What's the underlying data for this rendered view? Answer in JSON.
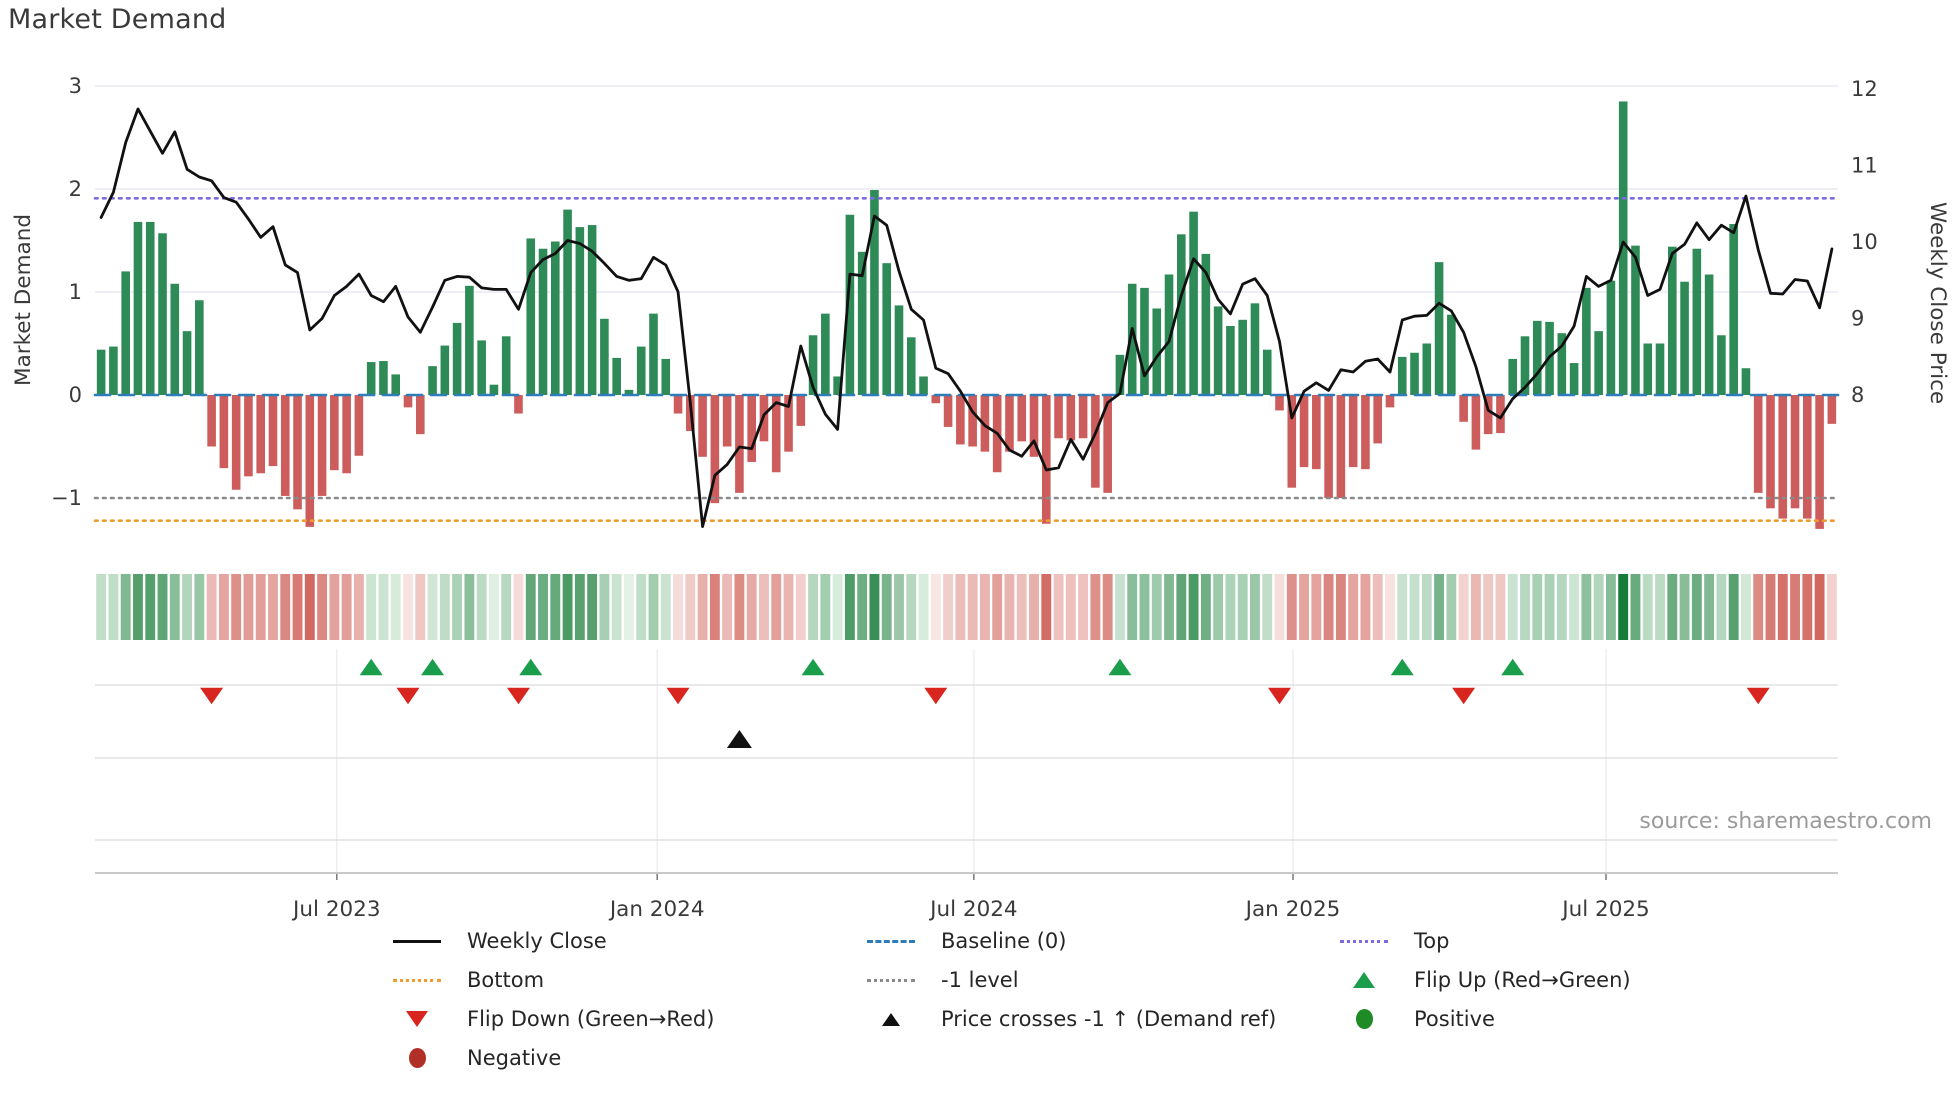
{
  "title": "Market Demand",
  "source": "source: sharemaestro.com",
  "axes": {
    "left": {
      "label": "Market Demand",
      "ticks": [
        {
          "label": "3",
          "value": 3
        },
        {
          "label": "2",
          "value": 2
        },
        {
          "label": "1",
          "value": 1
        },
        {
          "label": "0",
          "value": 0
        },
        {
          "label": "−1",
          "value": -1
        }
      ]
    },
    "right": {
      "label": "Weekly Close Price",
      "ticks": [
        {
          "label": "12",
          "value": 12
        },
        {
          "label": "11",
          "value": 11
        },
        {
          "label": "10",
          "value": 10
        },
        {
          "label": "9",
          "value": 9
        },
        {
          "label": "8",
          "value": 8
        }
      ]
    },
    "x": {
      "ticks": [
        {
          "label": "Jul 2023",
          "week": 19.2
        },
        {
          "label": "Jan 2024",
          "week": 45.3
        },
        {
          "label": "Jul 2024",
          "week": 71.1
        },
        {
          "label": "Jan 2025",
          "week": 97.1
        },
        {
          "label": "Jul 2025",
          "week": 122.6
        }
      ]
    }
  },
  "chart_data": {
    "type": "bar+line",
    "title": "Market Demand",
    "x_unit": "week_index",
    "n_weeks": 142,
    "ylabel": "Market Demand",
    "ylabel_right": "Weekly Close Price",
    "ylim_left": [
      -1.35,
      3.1
    ],
    "ylim_right": [
      6.2,
      12.2
    ],
    "series": [
      {
        "name": "Market Demand",
        "type": "bar",
        "values": [
          0.44,
          0.47,
          1.2,
          1.68,
          1.68,
          1.57,
          1.08,
          0.62,
          0.92,
          -0.5,
          -0.71,
          -0.92,
          -0.79,
          -0.76,
          -0.69,
          -0.98,
          -1.11,
          -1.28,
          -0.98,
          -0.73,
          -0.76,
          -0.59,
          0.32,
          0.33,
          0.2,
          -0.12,
          -0.38,
          0.28,
          0.48,
          0.7,
          1.06,
          0.53,
          0.1,
          0.57,
          -0.18,
          1.52,
          1.42,
          1.49,
          1.8,
          1.63,
          1.65,
          0.74,
          0.36,
          0.05,
          0.47,
          0.79,
          0.35,
          -0.18,
          -0.35,
          -0.6,
          -1.05,
          -0.5,
          -0.95,
          -0.65,
          -0.45,
          -0.75,
          -0.55,
          -0.3,
          0.58,
          0.79,
          0.18,
          1.75,
          1.39,
          1.99,
          1.28,
          0.87,
          0.56,
          0.18,
          -0.08,
          -0.31,
          -0.48,
          -0.5,
          -0.55,
          -0.75,
          -0.55,
          -0.45,
          -0.6,
          -1.25,
          -0.42,
          -0.44,
          -0.42,
          -0.9,
          -0.95,
          0.39,
          1.08,
          1.04,
          0.84,
          1.17,
          1.56,
          1.78,
          1.37,
          0.86,
          0.67,
          0.73,
          0.89,
          0.44,
          -0.15,
          -0.9,
          -0.7,
          -0.72,
          -1.0,
          -1.0,
          -0.7,
          -0.72,
          -0.47,
          -0.12,
          0.37,
          0.41,
          0.5,
          1.29,
          0.78,
          -0.26,
          -0.53,
          -0.38,
          -0.37,
          0.35,
          0.57,
          0.72,
          0.71,
          0.6,
          0.31,
          1.04,
          0.62,
          1.11,
          2.85,
          1.45,
          0.5,
          0.5,
          1.44,
          1.1,
          1.42,
          1.17,
          0.58,
          1.66,
          0.26,
          -0.95,
          -1.1,
          -1.2,
          -1.1,
          -1.2,
          -1.3,
          -0.28
        ]
      },
      {
        "name": "Weekly Close",
        "type": "line",
        "values": [
          10.32,
          10.65,
          11.3,
          11.74,
          11.45,
          11.16,
          11.44,
          10.95,
          10.85,
          10.8,
          10.58,
          10.52,
          10.3,
          10.06,
          10.2,
          9.7,
          9.6,
          8.85,
          9.0,
          9.3,
          9.42,
          9.58,
          9.3,
          9.22,
          9.42,
          9.02,
          8.82,
          9.15,
          9.5,
          9.55,
          9.54,
          9.4,
          9.38,
          9.38,
          9.12,
          9.6,
          9.77,
          9.85,
          10.02,
          9.98,
          9.88,
          9.72,
          9.55,
          9.5,
          9.52,
          9.8,
          9.7,
          9.35,
          7.9,
          6.28,
          6.95,
          7.09,
          7.32,
          7.3,
          7.74,
          7.9,
          7.85,
          8.64,
          8.1,
          7.75,
          7.55,
          9.58,
          9.56,
          10.34,
          10.22,
          9.62,
          9.12,
          8.98,
          8.35,
          8.28,
          8.05,
          7.78,
          7.6,
          7.5,
          7.28,
          7.2,
          7.4,
          7.02,
          7.05,
          7.42,
          7.16,
          7.5,
          7.9,
          8.02,
          8.87,
          8.25,
          8.5,
          8.7,
          9.3,
          9.78,
          9.6,
          9.25,
          9.06,
          9.45,
          9.52,
          9.3,
          8.7,
          7.7,
          8.05,
          8.16,
          8.06,
          8.33,
          8.3,
          8.44,
          8.47,
          8.3,
          8.98,
          9.03,
          9.04,
          9.2,
          9.1,
          8.82,
          8.37,
          7.8,
          7.7,
          7.95,
          8.1,
          8.28,
          8.5,
          8.64,
          8.9,
          9.55,
          9.42,
          9.5,
          10.0,
          9.8,
          9.3,
          9.38,
          9.85,
          9.97,
          10.25,
          10.03,
          10.22,
          10.12,
          10.6,
          9.9,
          9.33,
          9.32,
          9.51,
          9.49,
          9.14,
          9.91
        ]
      }
    ],
    "reference_lines": [
      {
        "name": "Top",
        "value": 1.91,
        "color_key": "top",
        "style": "dotted"
      },
      {
        "name": "Baseline (0)",
        "value": 0,
        "color_key": "baseline",
        "style": "dashed"
      },
      {
        "name": "-1 level",
        "value": -1,
        "color_key": "minus1",
        "style": "dotted"
      },
      {
        "name": "Bottom",
        "value": -1.22,
        "color_key": "bottom",
        "style": "dotted"
      }
    ],
    "markers": {
      "flip_up_weeks": [
        22,
        27,
        35,
        58,
        83,
        106,
        115
      ],
      "flip_down_weeks": [
        9,
        25,
        34,
        47,
        68,
        96,
        111,
        135
      ],
      "price_cross_weeks": [
        52
      ]
    },
    "heatmap": {
      "note": "strip of weekly cells colored by demand value",
      "source_series": "Market Demand"
    },
    "grid": "horizontal at left-axis integers 1,2,3",
    "legend_position": "bottom"
  },
  "legend": {
    "col1": [
      {
        "label": "Weekly Close",
        "swatch": "line",
        "color_key": "price_line"
      },
      {
        "label": "Bottom",
        "swatch": "dotted",
        "color_key": "bottom"
      },
      {
        "label": "Flip Down (Green→Red)",
        "swatch": "tri_down",
        "color_key": "flip_down"
      },
      {
        "label": "Negative",
        "swatch": "circle",
        "color_key": "negative_dot"
      }
    ],
    "col2": [
      {
        "label": "Baseline (0)",
        "swatch": "dashed",
        "color_key": "baseline"
      },
      {
        "label": "-1 level",
        "swatch": "dotted",
        "color_key": "minus1"
      },
      {
        "label": "Price crosses -1 ↑ (Demand ref)",
        "swatch": "tri_up_black",
        "color_key": "price_cross"
      }
    ],
    "col3": [
      {
        "label": "Top",
        "swatch": "dotted",
        "color_key": "top"
      },
      {
        "label": "Flip Up (Red→Green)",
        "swatch": "tri_up",
        "color_key": "flip_up"
      },
      {
        "label": "Positive",
        "swatch": "circle",
        "color_key": "positive_dot"
      }
    ]
  },
  "colors": {
    "bar_positive": "#2e8b57",
    "bar_negative": "#cd5c5c",
    "price_line": "#111111",
    "baseline": "#2e7cb8",
    "top": "#7a6ce0",
    "bottom": "#f09c2c",
    "minus1": "#8a8a8a",
    "flip_up": "#1b9e4b",
    "flip_down": "#d9251f",
    "price_cross": "#111111",
    "positive_dot": "#1f8b27",
    "negative_dot": "#b03028",
    "heat_pos_strong": "#167a38",
    "heat_pos_weak": "#e8f5ea",
    "heat_neg_strong": "#cf625a",
    "heat_neg_weak": "#fbeeec",
    "grid": "#e9e9f2",
    "marker_grid": "#dcdcdc",
    "spine": "#c9c9c9",
    "axis_text": "#3a3a3a",
    "source_text": "#9b9b9b"
  }
}
